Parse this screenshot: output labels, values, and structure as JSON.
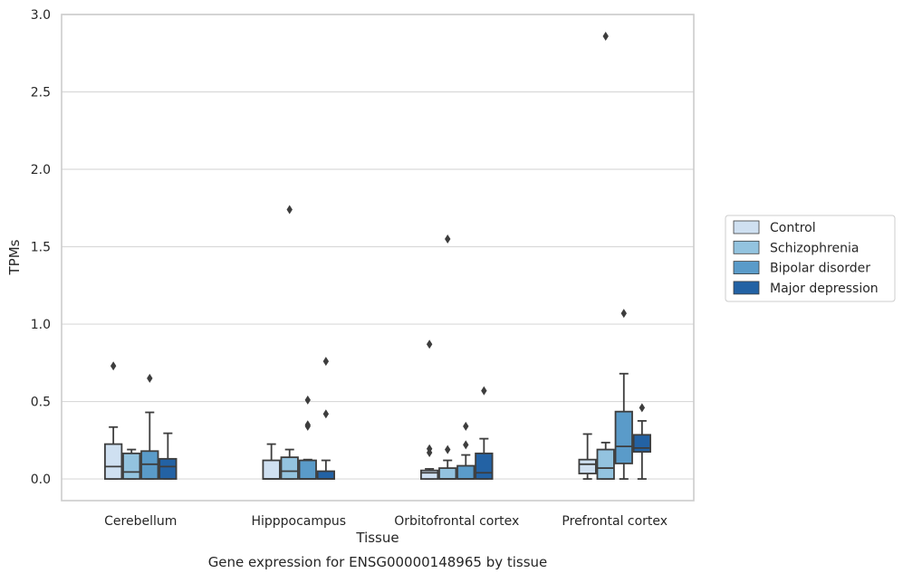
{
  "chart_data": {
    "type": "box",
    "title": "",
    "xlabel": "Tissue",
    "ylabel": "TPMs",
    "caption": "Gene expression for ENSG00000148965 by tissue",
    "ylim": [
      -0.14,
      3.0
    ],
    "yticks": [
      "0.0",
      "0.5",
      "1.0",
      "1.5",
      "2.0",
      "2.5",
      "3.0"
    ],
    "ytick_values": [
      0,
      0.5,
      1.0,
      1.5,
      2.0,
      2.5,
      3.0
    ],
    "grid": "horizontal",
    "legend_position": "right",
    "categories": [
      "Cerebellum",
      "Hipppocampus",
      "Orbitofrontal cortex",
      "Prefrontal cortex"
    ],
    "series": [
      {
        "name": "Control",
        "color": "#cfe0f1",
        "boxes": [
          {
            "whislo": 0.0,
            "q1": 0.0,
            "med": 0.08,
            "q3": 0.225,
            "whishi": 0.335,
            "fliers": [
              0.73
            ]
          },
          {
            "whislo": 0.0,
            "q1": 0.0,
            "med": 0.0,
            "q3": 0.12,
            "whishi": 0.225,
            "fliers": []
          },
          {
            "whislo": 0.0,
            "q1": 0.0,
            "med": 0.04,
            "q3": 0.055,
            "whishi": 0.065,
            "fliers": [
              0.87,
              0.195,
              0.17
            ]
          },
          {
            "whislo": 0.0,
            "q1": 0.035,
            "med": 0.095,
            "q3": 0.125,
            "whishi": 0.29,
            "fliers": []
          }
        ]
      },
      {
        "name": "Schizophrenia",
        "color": "#93c3df",
        "boxes": [
          {
            "whislo": 0.0,
            "q1": 0.0,
            "med": 0.045,
            "q3": 0.165,
            "whishi": 0.19,
            "fliers": []
          },
          {
            "whislo": 0.0,
            "q1": 0.0,
            "med": 0.05,
            "q3": 0.14,
            "whishi": 0.19,
            "fliers": [
              1.74
            ]
          },
          {
            "whislo": 0.0,
            "q1": 0.0,
            "med": 0.0,
            "q3": 0.07,
            "whishi": 0.12,
            "fliers": [
              1.55,
              0.19
            ]
          },
          {
            "whislo": 0.0,
            "q1": 0.0,
            "med": 0.07,
            "q3": 0.19,
            "whishi": 0.235,
            "fliers": [
              2.86
            ]
          }
        ]
      },
      {
        "name": "Bipolar disorder",
        "color": "#5a9bc9",
        "boxes": [
          {
            "whislo": 0.0,
            "q1": 0.0,
            "med": 0.095,
            "q3": 0.18,
            "whishi": 0.43,
            "fliers": [
              0.65
            ]
          },
          {
            "whislo": 0.0,
            "q1": 0.0,
            "med": 0.0,
            "q3": 0.12,
            "whishi": 0.125,
            "fliers": [
              0.51,
              0.35,
              0.34
            ]
          },
          {
            "whislo": 0.0,
            "q1": 0.0,
            "med": 0.0,
            "q3": 0.085,
            "whishi": 0.155,
            "fliers": [
              0.34,
              0.22
            ]
          },
          {
            "whislo": 0.0,
            "q1": 0.1,
            "med": 0.21,
            "q3": 0.435,
            "whishi": 0.68,
            "fliers": [
              1.07
            ]
          }
        ]
      },
      {
        "name": "Major depression",
        "color": "#2362a4",
        "boxes": [
          {
            "whislo": 0.0,
            "q1": 0.0,
            "med": 0.08,
            "q3": 0.13,
            "whishi": 0.295,
            "fliers": []
          },
          {
            "whislo": 0.0,
            "q1": 0.0,
            "med": 0.0,
            "q3": 0.05,
            "whishi": 0.12,
            "fliers": [
              0.76,
              0.42
            ]
          },
          {
            "whislo": 0.0,
            "q1": 0.0,
            "med": 0.04,
            "q3": 0.165,
            "whishi": 0.26,
            "fliers": [
              0.57
            ]
          },
          {
            "whislo": 0.0,
            "q1": 0.175,
            "med": 0.2,
            "q3": 0.285,
            "whishi": 0.375,
            "fliers": [
              0.46
            ]
          }
        ]
      }
    ]
  }
}
